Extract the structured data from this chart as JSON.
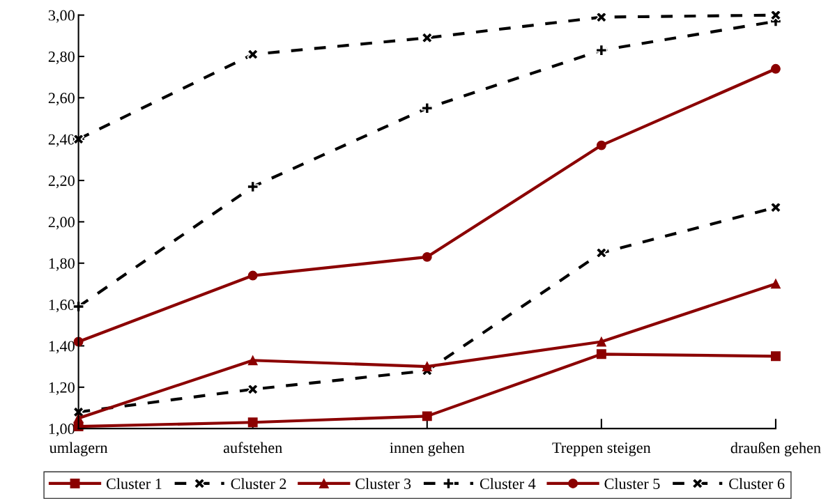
{
  "chart_data": {
    "type": "line",
    "categories": [
      "umlagern",
      "aufstehen",
      "innen gehen",
      "Treppen steigen",
      "draußen gehen"
    ],
    "series": [
      {
        "name": "Cluster 1",
        "color": "#8b0000",
        "marker": "square",
        "line_style": "solid",
        "values": [
          1.01,
          1.03,
          1.06,
          1.36,
          1.35
        ]
      },
      {
        "name": "Cluster 2",
        "color": "#000000",
        "marker": "cross",
        "line_style": "dashed",
        "values": [
          1.08,
          1.19,
          1.28,
          1.85,
          2.07
        ]
      },
      {
        "name": "Cluster 3",
        "color": "#8b0000",
        "marker": "triangle",
        "line_style": "solid",
        "values": [
          1.05,
          1.33,
          1.3,
          1.42,
          1.7
        ]
      },
      {
        "name": "Cluster 4",
        "color": "#000000",
        "marker": "plus",
        "line_style": "dashed",
        "values": [
          1.59,
          2.17,
          2.55,
          2.83,
          2.97
        ]
      },
      {
        "name": "Cluster 5",
        "color": "#8b0000",
        "marker": "circle",
        "line_style": "solid",
        "values": [
          1.42,
          1.74,
          1.83,
          2.37,
          2.74
        ]
      },
      {
        "name": "Cluster 6",
        "color": "#000000",
        "marker": "cross",
        "line_style": "dashed",
        "values": [
          2.4,
          2.81,
          2.89,
          2.99,
          3.0
        ]
      }
    ],
    "ylim": [
      1.0,
      3.0
    ],
    "yticks": [
      {
        "value": 1.0,
        "label": "1,00"
      },
      {
        "value": 1.2,
        "label": "1,20"
      },
      {
        "value": 1.4,
        "label": "1,40"
      },
      {
        "value": 1.6,
        "label": "1,60"
      },
      {
        "value": 1.8,
        "label": "1,80"
      },
      {
        "value": 2.0,
        "label": "2,00"
      },
      {
        "value": 2.2,
        "label": "2,20"
      },
      {
        "value": 2.4,
        "label": "2,40"
      },
      {
        "value": 2.6,
        "label": "2,60"
      },
      {
        "value": 2.8,
        "label": "2,80"
      },
      {
        "value": 3.0,
        "label": "3,00"
      }
    ],
    "grid": false,
    "legend": "bottom"
  }
}
